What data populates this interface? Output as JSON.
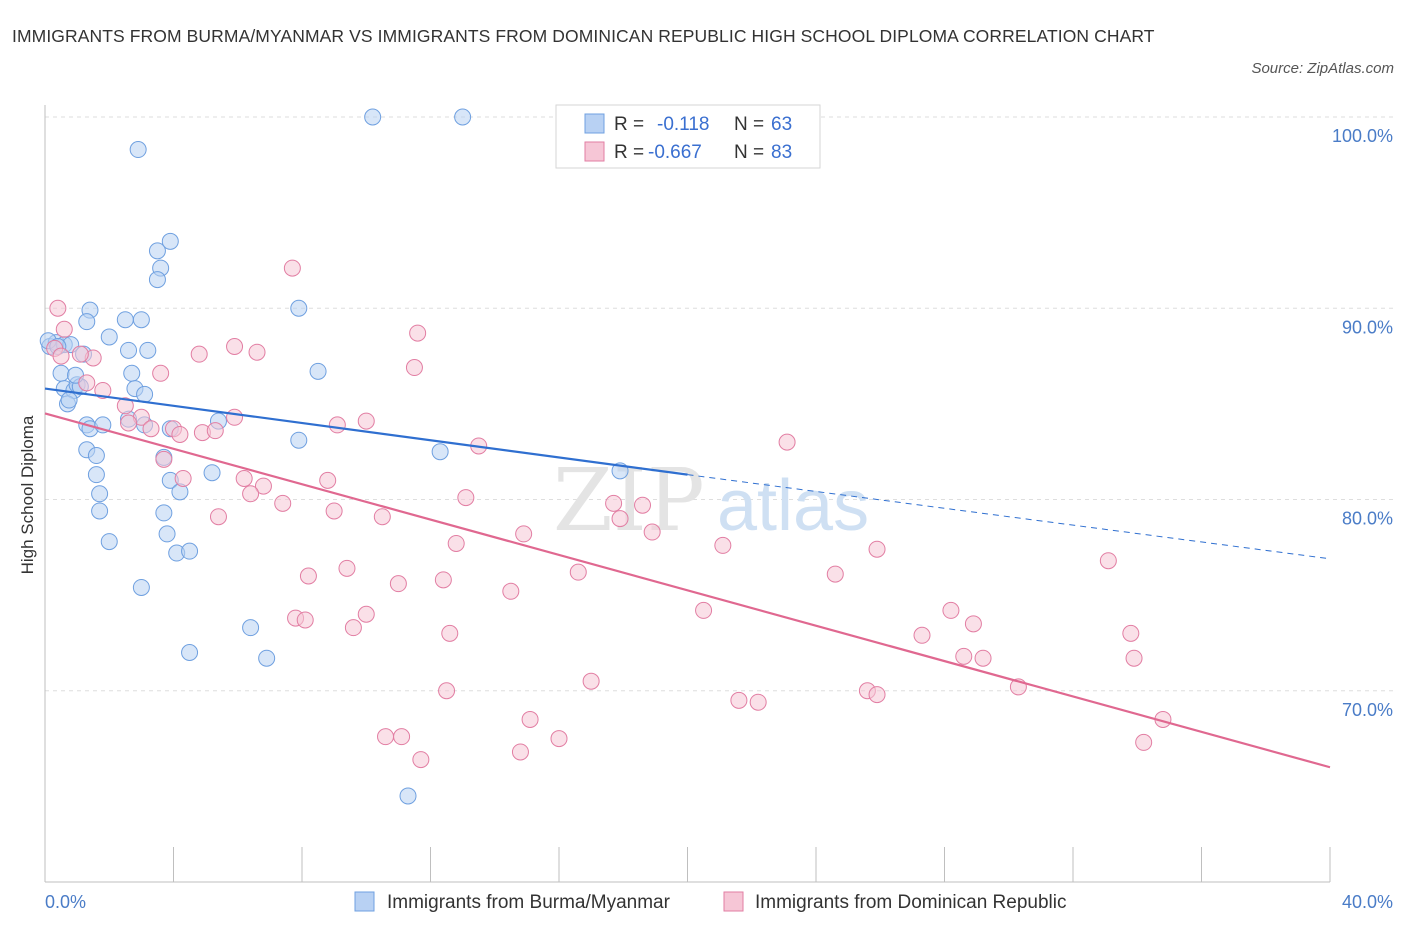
{
  "title": "IMMIGRANTS FROM BURMA/MYANMAR VS IMMIGRANTS FROM DOMINICAN REPUBLIC HIGH SCHOOL DIPLOMA CORRELATION CHART",
  "source": "Source: ZipAtlas.com",
  "watermark": {
    "zip": "ZIP",
    "atlas": "atlas"
  },
  "colors": {
    "blue": "#6fa0e0",
    "blue_fill": "#b8d1f3",
    "blue_line": "#2f6fd0",
    "pink": "#e27ea3",
    "pink_fill": "#f6c6d6",
    "pink_line": "#e06890",
    "axis_text": "#4a7cc7",
    "grid": "#d9d9d9"
  },
  "chart_data": {
    "type": "scatter",
    "title": "IMMIGRANTS FROM BURMA/MYANMAR VS IMMIGRANTS FROM DOMINICAN REPUBLIC HIGH SCHOOL DIPLOMA CORRELATION CHART",
    "xlabel": "",
    "ylabel": "High School Diploma",
    "xlim": [
      0,
      40
    ],
    "ylim": [
      60,
      100
    ],
    "x_tick_labels": [
      "0.0%",
      "40.0%"
    ],
    "y_ticks": [
      70,
      80,
      90,
      100
    ],
    "y_tick_labels": [
      "70.0%",
      "80.0%",
      "90.0%",
      "100.0%"
    ],
    "grid": true,
    "legend_position": "top-center",
    "stats": [
      {
        "r_label": "R =",
        "r": "-0.118",
        "n_label": "N =",
        "n": "63"
      },
      {
        "r_label": "R =",
        "r": "-0.667",
        "n_label": "N =",
        "n": "83"
      }
    ],
    "series": [
      {
        "name": "Immigrants from Burma/Myanmar",
        "color": "#6fa0e0",
        "trend": {
          "x0": 0.0,
          "y0": 85.8,
          "x1": 20.0,
          "y1": 81.3,
          "dash_to_x": 40.0,
          "dash_to_y": 76.9
        },
        "points": [
          [
            0.15,
            88
          ],
          [
            0.35,
            88.2
          ],
          [
            0.6,
            88.1
          ],
          [
            0.8,
            88.1
          ],
          [
            0.5,
            86.6
          ],
          [
            0.6,
            85.8
          ],
          [
            0.9,
            85.7
          ],
          [
            1.0,
            86.0
          ],
          [
            1.1,
            85.9
          ],
          [
            0.95,
            86.5
          ],
          [
            0.7,
            85.0
          ],
          [
            0.75,
            85.2
          ],
          [
            1.4,
            89.9
          ],
          [
            2.5,
            89.4
          ],
          [
            1.3,
            89.3
          ],
          [
            2.0,
            88.5
          ],
          [
            3.5,
            93.0
          ],
          [
            3.9,
            93.5
          ],
          [
            3.6,
            92.1
          ],
          [
            3.5,
            91.5
          ],
          [
            2.9,
            98.3
          ],
          [
            10.2,
            100.0
          ],
          [
            13.0,
            100.0
          ],
          [
            7.9,
            90.0
          ],
          [
            3.0,
            89.4
          ],
          [
            3.2,
            87.8
          ],
          [
            2.6,
            87.8
          ],
          [
            1.2,
            87.6
          ],
          [
            2.7,
            86.6
          ],
          [
            2.8,
            85.8
          ],
          [
            3.1,
            85.5
          ],
          [
            8.5,
            86.7
          ],
          [
            5.4,
            84.1
          ],
          [
            1.3,
            83.9
          ],
          [
            1.4,
            83.7
          ],
          [
            1.8,
            83.9
          ],
          [
            2.6,
            84.2
          ],
          [
            3.1,
            83.9
          ],
          [
            3.9,
            83.7
          ],
          [
            7.9,
            83.1
          ],
          [
            1.3,
            82.6
          ],
          [
            1.6,
            82.3
          ],
          [
            3.7,
            82.2
          ],
          [
            1.6,
            81.3
          ],
          [
            5.2,
            81.4
          ],
          [
            3.9,
            81.0
          ],
          [
            1.7,
            80.3
          ],
          [
            4.2,
            80.4
          ],
          [
            1.7,
            79.4
          ],
          [
            3.7,
            79.3
          ],
          [
            3.8,
            78.2
          ],
          [
            2.0,
            77.8
          ],
          [
            4.1,
            77.2
          ],
          [
            4.5,
            77.3
          ],
          [
            3.0,
            75.4
          ],
          [
            6.4,
            73.3
          ],
          [
            6.9,
            71.7
          ],
          [
            4.5,
            72.0
          ],
          [
            12.3,
            82.5
          ],
          [
            17.9,
            81.5
          ],
          [
            11.3,
            64.5
          ],
          [
            0.1,
            88.3
          ],
          [
            0.4,
            88.0
          ]
        ]
      },
      {
        "name": "Immigrants from Dominican Republic",
        "color": "#e27ea3",
        "trend": {
          "x0": 0.0,
          "y0": 84.5,
          "x1": 40.0,
          "y1": 66.0
        },
        "points": [
          [
            0.4,
            90.0
          ],
          [
            0.6,
            88.9
          ],
          [
            1.5,
            87.4
          ],
          [
            1.1,
            87.6
          ],
          [
            1.3,
            86.1
          ],
          [
            3.6,
            86.6
          ],
          [
            4.8,
            87.6
          ],
          [
            5.9,
            88.0
          ],
          [
            6.6,
            87.7
          ],
          [
            7.7,
            92.1
          ],
          [
            11.6,
            88.7
          ],
          [
            11.5,
            86.9
          ],
          [
            1.8,
            85.7
          ],
          [
            2.5,
            84.9
          ],
          [
            3.0,
            84.3
          ],
          [
            2.6,
            84.0
          ],
          [
            3.3,
            83.7
          ],
          [
            4.0,
            83.7
          ],
          [
            4.9,
            83.5
          ],
          [
            5.3,
            83.6
          ],
          [
            5.9,
            84.3
          ],
          [
            9.1,
            83.9
          ],
          [
            10.0,
            84.1
          ],
          [
            13.5,
            82.8
          ],
          [
            3.7,
            82.1
          ],
          [
            4.2,
            83.4
          ],
          [
            6.2,
            81.1
          ],
          [
            6.8,
            80.7
          ],
          [
            6.4,
            80.3
          ],
          [
            8.8,
            81.0
          ],
          [
            7.4,
            79.8
          ],
          [
            9.0,
            79.4
          ],
          [
            5.4,
            79.1
          ],
          [
            10.5,
            79.1
          ],
          [
            13.1,
            80.1
          ],
          [
            17.7,
            79.8
          ],
          [
            18.6,
            79.7
          ],
          [
            17.9,
            79.0
          ],
          [
            18.9,
            78.3
          ],
          [
            14.9,
            78.2
          ],
          [
            12.8,
            77.7
          ],
          [
            21.1,
            77.6
          ],
          [
            25.9,
            77.4
          ],
          [
            33.1,
            76.8
          ],
          [
            24.6,
            76.1
          ],
          [
            16.6,
            76.2
          ],
          [
            9.4,
            76.4
          ],
          [
            8.2,
            76.0
          ],
          [
            11.0,
            75.6
          ],
          [
            12.4,
            75.8
          ],
          [
            14.5,
            75.2
          ],
          [
            20.5,
            74.2
          ],
          [
            28.2,
            74.2
          ],
          [
            10.0,
            74.0
          ],
          [
            7.8,
            73.8
          ],
          [
            8.1,
            73.7
          ],
          [
            9.6,
            73.3
          ],
          [
            12.6,
            73.0
          ],
          [
            27.3,
            72.9
          ],
          [
            28.9,
            73.5
          ],
          [
            33.8,
            73.0
          ],
          [
            28.6,
            71.8
          ],
          [
            29.2,
            71.7
          ],
          [
            33.9,
            71.7
          ],
          [
            30.3,
            70.2
          ],
          [
            17.0,
            70.5
          ],
          [
            12.5,
            70.0
          ],
          [
            25.6,
            70.0
          ],
          [
            25.9,
            69.8
          ],
          [
            21.6,
            69.5
          ],
          [
            22.2,
            69.4
          ],
          [
            15.1,
            68.5
          ],
          [
            34.8,
            68.5
          ],
          [
            10.6,
            67.6
          ],
          [
            11.1,
            67.6
          ],
          [
            16.0,
            67.5
          ],
          [
            14.8,
            66.8
          ],
          [
            11.7,
            66.4
          ],
          [
            34.2,
            67.3
          ],
          [
            23.1,
            83.0
          ],
          [
            4.3,
            81.1
          ],
          [
            0.3,
            87.9
          ],
          [
            0.5,
            87.5
          ]
        ]
      }
    ]
  }
}
